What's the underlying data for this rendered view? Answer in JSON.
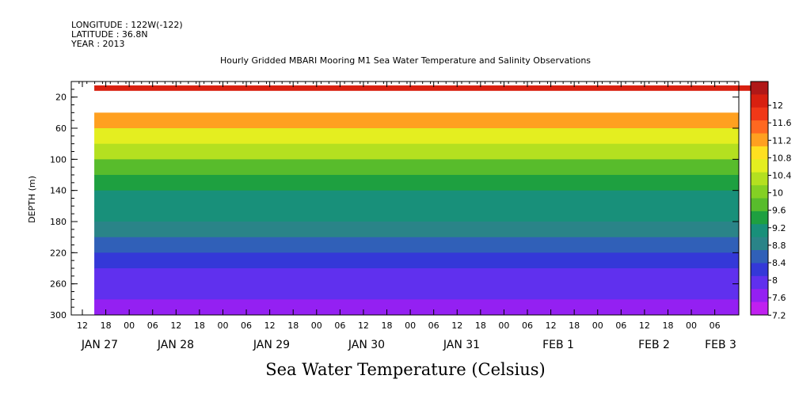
{
  "header": {
    "longitude": "LONGITUDE : 122W(-122)",
    "latitude": "LATITUDE : 36.8N",
    "year": "YEAR : 2013"
  },
  "chart_data": {
    "type": "heatmap",
    "title": "Hourly Gridded MBARI Mooring M1 Sea Water Temperature and Salinity Observations",
    "xlabel": "Sea Water Temperature (Celsius)",
    "ylabel": "DEPTH (m)",
    "ylim": [
      300,
      0
    ],
    "y_ticks": [
      20,
      60,
      100,
      140,
      180,
      220,
      260,
      300
    ],
    "x_hour_ticks": [
      "12",
      "18",
      "00",
      "06",
      "12",
      "18",
      "00",
      "06",
      "12",
      "18",
      "00",
      "06",
      "12",
      "18",
      "00",
      "06",
      "12",
      "18",
      "00",
      "06",
      "12",
      "18",
      "00",
      "06",
      "12",
      "18",
      "00",
      "06"
    ],
    "x_date_labels": [
      "JAN 27",
      "JAN 28",
      "JAN 29",
      "JAN 30",
      "JAN 31",
      "FEB  1",
      "FEB  2",
      "FEB  3"
    ],
    "colorbar": {
      "levels": [
        "12",
        "11.6",
        "11.2",
        "10.8",
        "10.4",
        "10",
        "9.6",
        "9.2",
        "8.8",
        "8.4",
        "8",
        "7.6",
        "7.2"
      ],
      "colors": [
        "#b01818",
        "#d82010",
        "#f03818",
        "#ff6820",
        "#ffa020",
        "#ffe020",
        "#e4ee20",
        "#b4e020",
        "#84d024",
        "#58bc2c",
        "#1ea040",
        "#18907a",
        "#2a8488",
        "#3060b8",
        "#3438d8",
        "#6030ee",
        "#9420f2",
        "#c020f0"
      ]
    },
    "surface_band": {
      "depth_range": [
        5,
        12
      ],
      "value": "12"
    },
    "data_window": {
      "start_hours_from_origin": 6,
      "gap_end_hours": 180,
      "resume_hours": 206
    },
    "depth_profile": [
      {
        "depth": 40,
        "value": 11.0
      },
      {
        "depth": 60,
        "value": 10.2
      },
      {
        "depth": 80,
        "value": 9.9
      },
      {
        "depth": 100,
        "value": 9.6
      },
      {
        "depth": 120,
        "value": 9.3
      },
      {
        "depth": 140,
        "value": 9.0
      },
      {
        "depth": 160,
        "value": 8.8
      },
      {
        "depth": 180,
        "value": 8.5
      },
      {
        "depth": 200,
        "value": 8.2
      },
      {
        "depth": 220,
        "value": 8.0
      },
      {
        "depth": 240,
        "value": 7.8
      },
      {
        "depth": 260,
        "value": 7.6
      },
      {
        "depth": 280,
        "value": 7.4
      },
      {
        "depth": 300,
        "value": 7.3
      }
    ]
  }
}
